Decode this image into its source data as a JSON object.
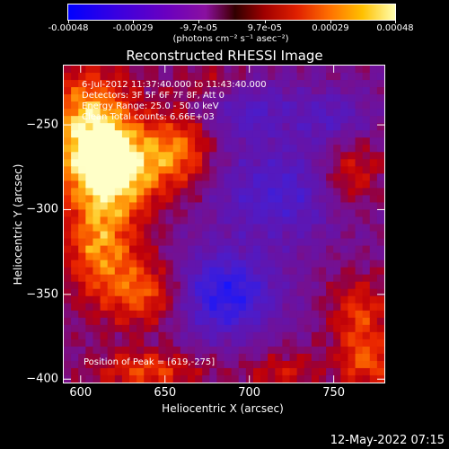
{
  "colorbar": {
    "tick_labels": [
      "-0.00048",
      "-0.00029",
      "-9.7e-05",
      "9.7e-05",
      "0.00029",
      "0.00048"
    ],
    "tick_values": [
      -0.00048,
      -0.00029,
      -9.7e-05,
      9.7e-05,
      0.00029,
      0.00048
    ],
    "units": "(photons cm⁻² s⁻¹ asec⁻²)",
    "range": [
      -0.00048,
      0.00048
    ]
  },
  "info": {
    "time": "6-Jul-2012 11:37:40.000 to 11:43:40.000",
    "detectors": "Detectors: 3F 5F 6F 7F 8F, Att 0",
    "energy": "Energy Range: 25.0 - 50.0 keV",
    "method": "Clean     Total counts: 6.66E+03",
    "peak": "Position of Peak = [619,-275]"
  },
  "timestamp": "12-May-2022 07:15",
  "chart_data": {
    "type": "heatmap",
    "title": "Reconstructed RHESSI Image",
    "xlabel": "Heliocentric X (arcsec)",
    "ylabel": "Heliocentric Y (arcsec)",
    "xlim": [
      590,
      780
    ],
    "ylim": [
      -402,
      -215
    ],
    "x_ticks": [
      600,
      650,
      700,
      750
    ],
    "y_ticks": [
      -250,
      -300,
      -350,
      -400
    ],
    "x_tick_labels": [
      "600",
      "650",
      "700",
      "750"
    ],
    "y_tick_labels": [
      "−250",
      "−300",
      "−350",
      "−400"
    ],
    "colormap": "blue-purple-red-yellow",
    "peak_position": [
      619,
      -275
    ],
    "sources": [
      {
        "x": 619,
        "y": -275,
        "amp": 1.0,
        "sx": 22,
        "sy": 18
      },
      {
        "x": 605,
        "y": -245,
        "amp": 0.75,
        "sx": 18,
        "sy": 22
      },
      {
        "x": 612,
        "y": -320,
        "amp": 0.7,
        "sx": 16,
        "sy": 22
      },
      {
        "x": 640,
        "y": -350,
        "amp": 0.6,
        "sx": 18,
        "sy": 14
      },
      {
        "x": 660,
        "y": -265,
        "amp": 0.55,
        "sx": 14,
        "sy": 16
      },
      {
        "x": 640,
        "y": -395,
        "amp": 0.55,
        "sx": 22,
        "sy": 8
      },
      {
        "x": 760,
        "y": -280,
        "amp": 0.5,
        "sx": 14,
        "sy": 16
      },
      {
        "x": 765,
        "y": -360,
        "amp": 0.5,
        "sx": 12,
        "sy": 14
      },
      {
        "x": 770,
        "y": -390,
        "amp": 0.55,
        "sx": 12,
        "sy": 12
      },
      {
        "x": 720,
        "y": -395,
        "amp": 0.35,
        "sx": 16,
        "sy": 8
      },
      {
        "x": 680,
        "y": -225,
        "amp": 0.3,
        "sx": 16,
        "sy": 8
      },
      {
        "x": 685,
        "y": -350,
        "amp": -0.85,
        "sx": 22,
        "sy": 18
      },
      {
        "x": 720,
        "y": -290,
        "amp": -0.55,
        "sx": 30,
        "sy": 20
      },
      {
        "x": 700,
        "y": -240,
        "amp": -0.45,
        "sx": 20,
        "sy": 14
      },
      {
        "x": 750,
        "y": -245,
        "amp": -0.4,
        "sx": 16,
        "sy": 12
      }
    ]
  }
}
